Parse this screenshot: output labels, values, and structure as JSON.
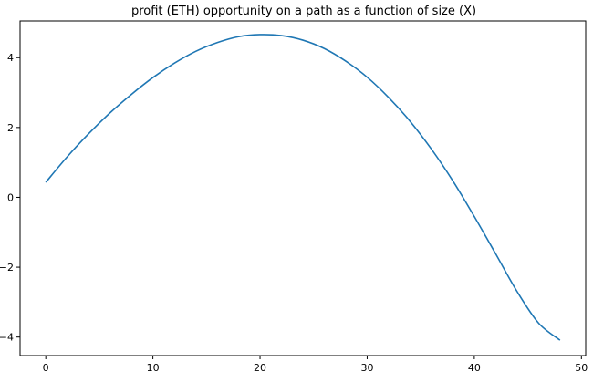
{
  "chart_data": {
    "type": "line",
    "title": "profit (ETH) opportunity on a path as a function of size (X)",
    "xlabel": "",
    "ylabel": "",
    "xlim": [
      -2.4,
      50.4
    ],
    "ylim": [
      -4.53,
      5.05
    ],
    "xticks": [
      0,
      10,
      20,
      30,
      40,
      50
    ],
    "yticks": [
      -4,
      -2,
      0,
      2,
      4
    ],
    "ytick_labels": [
      "−4",
      "−2",
      "0",
      "2",
      "4"
    ],
    "grid": false,
    "legend": "none",
    "series": [
      {
        "color": "#1f77b4",
        "x": [
          0,
          2,
          4,
          6,
          8,
          10,
          12,
          14,
          16,
          18,
          20,
          22,
          24,
          26,
          28,
          30,
          32,
          34,
          36,
          38,
          40,
          42,
          44,
          46,
          48
        ],
        "y": [
          0.43,
          1.16,
          1.82,
          2.42,
          2.95,
          3.43,
          3.84,
          4.18,
          4.43,
          4.6,
          4.66,
          4.63,
          4.5,
          4.26,
          3.9,
          3.44,
          2.86,
          2.18,
          1.38,
          0.47,
          -0.55,
          -1.62,
          -2.7,
          -3.6,
          -4.09
        ]
      }
    ]
  }
}
